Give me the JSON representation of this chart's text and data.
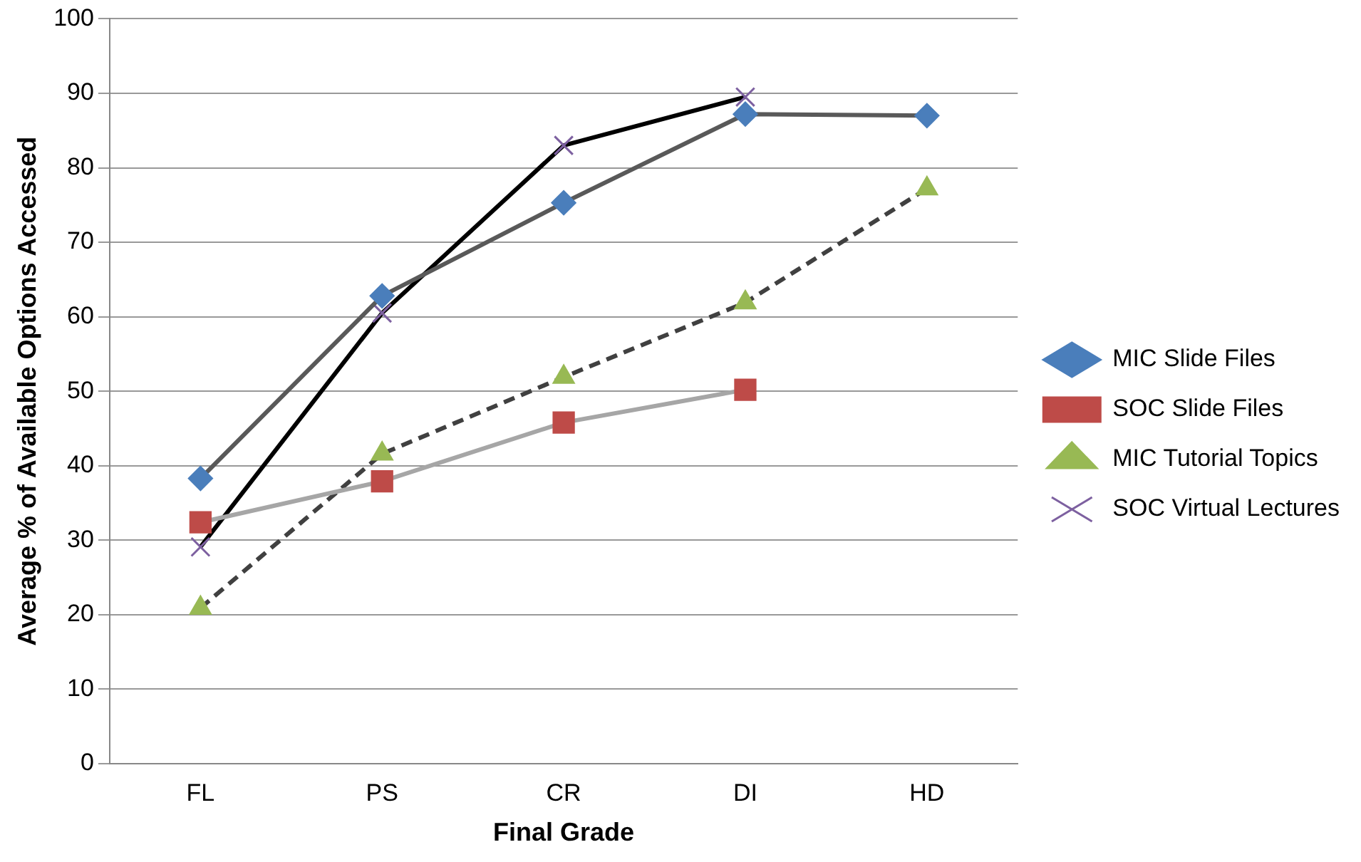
{
  "chart_data": {
    "type": "line",
    "xlabel": "Final Grade",
    "ylabel": "Average % of Available Options Accessed",
    "categories": [
      "FL",
      "PS",
      "CR",
      "DI",
      "HD"
    ],
    "ylim": [
      0,
      100
    ],
    "yticks": [
      0,
      10,
      20,
      30,
      40,
      50,
      60,
      70,
      80,
      90,
      100
    ],
    "grid": "y",
    "legend": "right",
    "series": [
      {
        "name": "MIC Slide Files",
        "color": "#595959",
        "colors": [
          "#4a7ebb",
          "#4a7ebb",
          "#4a7ebb",
          "#4a7ebb",
          "#4a7ebb"
        ],
        "marker": "diamond",
        "line_style": "solid",
        "values": [
          38.3,
          62.8,
          75.3,
          87.2,
          87.0
        ]
      },
      {
        "name": "SOC Slide Files",
        "color": "#a6a6a6",
        "colors": [
          "#be4b48",
          "#be4b48",
          "#be4b48",
          "#be4b48",
          "#be4b48"
        ],
        "marker": "square",
        "line_style": "solid",
        "values": [
          32.4,
          37.9,
          45.8,
          50.2,
          null
        ]
      },
      {
        "name": "MIC Tutorial Topics",
        "color": "#404040",
        "colors": [
          "#98b954",
          "#98b954",
          "#98b954",
          "#98b954",
          "#98b954"
        ],
        "marker": "triangle",
        "line_style": "dashed",
        "values": [
          20.9,
          41.6,
          51.9,
          61.9,
          77.2
        ]
      },
      {
        "name": "SOC Virtual Lectures",
        "color": "#000000",
        "colors": [
          "#7d60a0",
          "#7d60a0",
          "#7d60a0",
          "#7d60a0",
          "#7d60a0"
        ],
        "marker": "cross",
        "line_style": "solid",
        "values": [
          29.1,
          60.5,
          83.0,
          89.5,
          null
        ]
      }
    ]
  }
}
